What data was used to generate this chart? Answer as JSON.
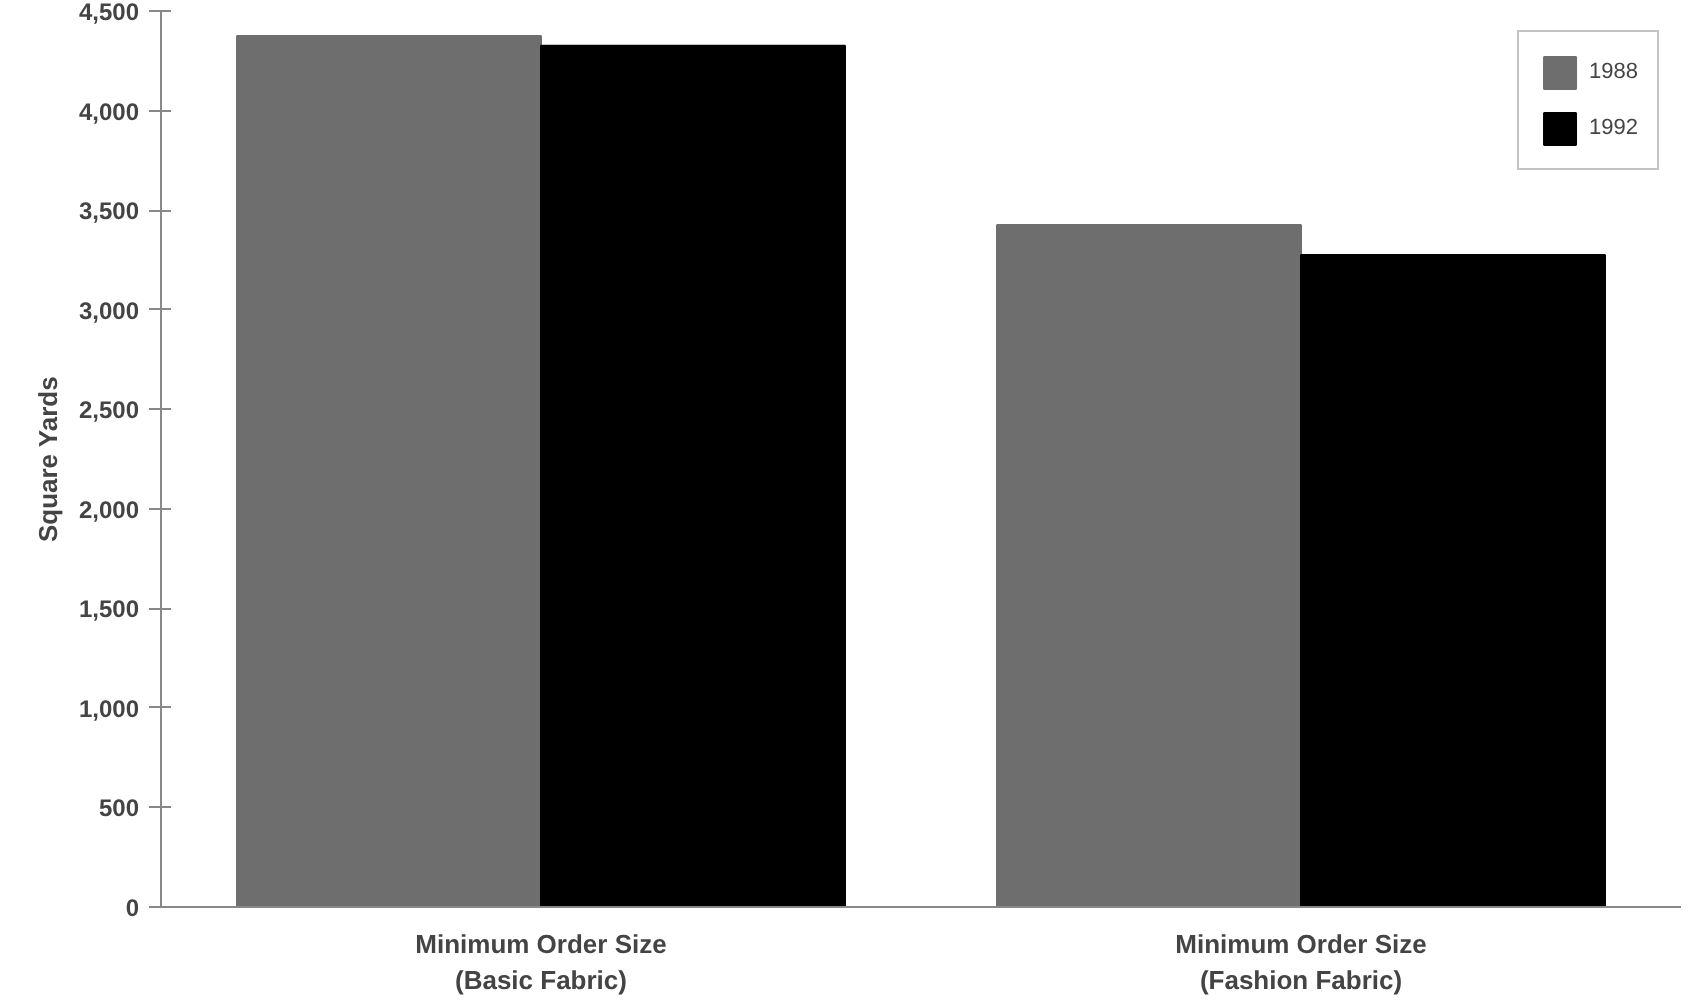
{
  "chart_data": {
    "type": "bar",
    "ylabel": "Square Yards",
    "categories": [
      "Minimum Order Size\n(Basic Fabric)",
      "Minimum Order Size\n(Fashion Fabric)"
    ],
    "series": [
      {
        "name": "1988",
        "color": "#6e6e6e",
        "values": [
          4375,
          3425
        ]
      },
      {
        "name": "1992",
        "color": "#000000",
        "values": [
          4325,
          3275
        ]
      }
    ],
    "ylim": [
      0,
      4500
    ],
    "yticks": [
      {
        "value": 0,
        "label": "0"
      },
      {
        "value": 500,
        "label": "500"
      },
      {
        "value": 1000,
        "label": "1,000"
      },
      {
        "value": 1500,
        "label": "1,500"
      },
      {
        "value": 2000,
        "label": "2,000"
      },
      {
        "value": 2500,
        "label": "2,500"
      },
      {
        "value": 3000,
        "label": "3,000"
      },
      {
        "value": 3500,
        "label": "3,500"
      },
      {
        "value": 4000,
        "label": "4,000"
      },
      {
        "value": 4500,
        "label": "4,500"
      }
    ],
    "grid": false,
    "legend": "top right"
  }
}
